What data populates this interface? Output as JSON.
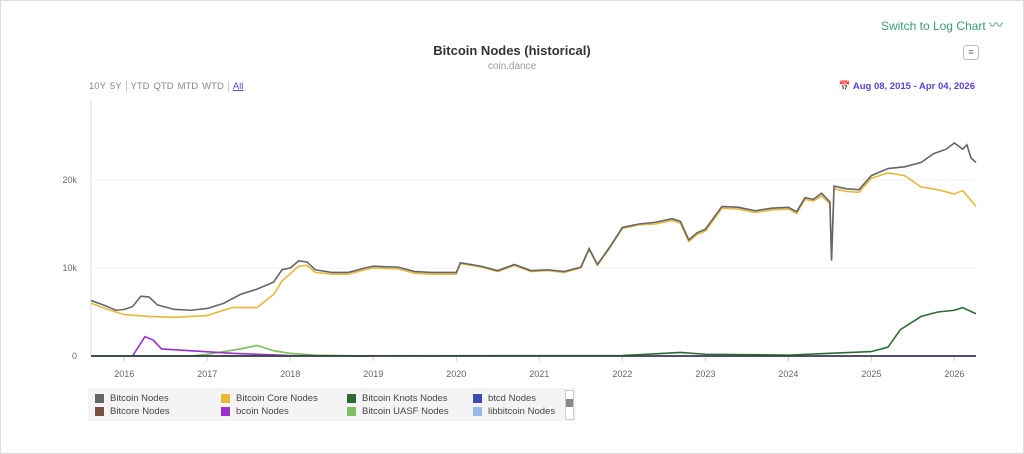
{
  "header": {
    "log_toggle": "Switch to Log Chart",
    "log_icon": "trend-line-icon",
    "menu_icon": "hamburger-menu-icon"
  },
  "range_buttons": [
    "10Y",
    "5Y",
    "YTD",
    "QTD",
    "MTD",
    "WTD",
    "All"
  ],
  "selected_range": "All",
  "date_range": "Aug 08, 2015 - Apr 04, 2026",
  "chart_data": {
    "type": "line",
    "title": "Bitcoin Nodes (historical)",
    "subtitle": "coin.dance",
    "x_ticks": [
      "2016",
      "2017",
      "2018",
      "2019",
      "2020",
      "2021",
      "2022",
      "2023",
      "2024",
      "2025",
      "2026"
    ],
    "y_ticks": [
      "0",
      "10k",
      "20k"
    ],
    "xlim": [
      2015.6,
      2026.26
    ],
    "ylim": [
      0,
      25000
    ],
    "grid": true,
    "legend_placement": "bottom",
    "series": [
      {
        "name": "Bitcoin Nodes",
        "color": "#666666",
        "points": [
          [
            2015.6,
            6300
          ],
          [
            2015.75,
            5800
          ],
          [
            2015.9,
            5200
          ],
          [
            2016.0,
            5300
          ],
          [
            2016.1,
            5600
          ],
          [
            2016.2,
            6800
          ],
          [
            2016.3,
            6700
          ],
          [
            2016.4,
            5800
          ],
          [
            2016.6,
            5300
          ],
          [
            2016.8,
            5200
          ],
          [
            2017.0,
            5400
          ],
          [
            2017.2,
            6000
          ],
          [
            2017.4,
            7000
          ],
          [
            2017.6,
            7600
          ],
          [
            2017.8,
            8400
          ],
          [
            2017.9,
            9800
          ],
          [
            2018.0,
            10000
          ],
          [
            2018.1,
            10800
          ],
          [
            2018.2,
            10700
          ],
          [
            2018.3,
            9800
          ],
          [
            2018.5,
            9500
          ],
          [
            2018.7,
            9500
          ],
          [
            2018.9,
            10000
          ],
          [
            2019.0,
            10200
          ],
          [
            2019.3,
            10100
          ],
          [
            2019.5,
            9600
          ],
          [
            2019.7,
            9500
          ],
          [
            2020.0,
            9500
          ],
          [
            2020.05,
            10600
          ],
          [
            2020.3,
            10200
          ],
          [
            2020.5,
            9700
          ],
          [
            2020.7,
            10400
          ],
          [
            2020.9,
            9700
          ],
          [
            2021.1,
            9800
          ],
          [
            2021.3,
            9600
          ],
          [
            2021.5,
            10100
          ],
          [
            2021.6,
            12200
          ],
          [
            2021.7,
            10400
          ],
          [
            2021.85,
            12400
          ],
          [
            2022.0,
            14600
          ],
          [
            2022.2,
            15000
          ],
          [
            2022.4,
            15200
          ],
          [
            2022.6,
            15600
          ],
          [
            2022.7,
            15300
          ],
          [
            2022.8,
            13200
          ],
          [
            2022.9,
            14000
          ],
          [
            2023.0,
            14400
          ],
          [
            2023.2,
            17000
          ],
          [
            2023.4,
            16900
          ],
          [
            2023.6,
            16500
          ],
          [
            2023.8,
            16800
          ],
          [
            2024.0,
            16900
          ],
          [
            2024.1,
            16400
          ],
          [
            2024.2,
            18000
          ],
          [
            2024.3,
            17800
          ],
          [
            2024.4,
            18500
          ],
          [
            2024.5,
            17500
          ],
          [
            2024.52,
            10900
          ],
          [
            2024.55,
            19300
          ],
          [
            2024.7,
            19000
          ],
          [
            2024.85,
            18900
          ],
          [
            2025.0,
            20500
          ],
          [
            2025.2,
            21300
          ],
          [
            2025.4,
            21500
          ],
          [
            2025.6,
            22000
          ],
          [
            2025.75,
            23000
          ],
          [
            2025.9,
            23500
          ],
          [
            2026.0,
            24200
          ],
          [
            2026.1,
            23500
          ],
          [
            2026.15,
            24000
          ],
          [
            2026.2,
            22500
          ],
          [
            2026.26,
            22000
          ]
        ]
      },
      {
        "name": "Bitcoin Core Nodes",
        "color": "#e8b83a",
        "points": [
          [
            2015.6,
            6000
          ],
          [
            2015.8,
            5300
          ],
          [
            2016.0,
            4700
          ],
          [
            2016.3,
            4500
          ],
          [
            2016.6,
            4400
          ],
          [
            2017.0,
            4600
          ],
          [
            2017.3,
            5500
          ],
          [
            2017.6,
            5500
          ],
          [
            2017.8,
            7000
          ],
          [
            2017.9,
            8500
          ],
          [
            2018.1,
            10200
          ],
          [
            2018.2,
            10300
          ],
          [
            2018.3,
            9500
          ],
          [
            2018.5,
            9300
          ],
          [
            2018.7,
            9300
          ],
          [
            2018.9,
            9800
          ],
          [
            2019.0,
            10000
          ],
          [
            2019.3,
            9900
          ],
          [
            2019.5,
            9400
          ],
          [
            2019.7,
            9300
          ],
          [
            2020.0,
            9300
          ],
          [
            2020.05,
            10500
          ],
          [
            2020.3,
            10100
          ],
          [
            2020.5,
            9600
          ],
          [
            2020.7,
            10300
          ],
          [
            2020.9,
            9600
          ],
          [
            2021.1,
            9700
          ],
          [
            2021.3,
            9500
          ],
          [
            2021.5,
            10000
          ],
          [
            2021.6,
            12100
          ],
          [
            2021.7,
            10300
          ],
          [
            2021.85,
            12300
          ],
          [
            2022.0,
            14500
          ],
          [
            2022.2,
            14900
          ],
          [
            2022.4,
            15000
          ],
          [
            2022.6,
            15400
          ],
          [
            2022.7,
            15100
          ],
          [
            2022.8,
            13000
          ],
          [
            2022.9,
            13800
          ],
          [
            2023.0,
            14200
          ],
          [
            2023.2,
            16800
          ],
          [
            2023.4,
            16700
          ],
          [
            2023.6,
            16300
          ],
          [
            2023.8,
            16600
          ],
          [
            2024.0,
            16700
          ],
          [
            2024.1,
            16200
          ],
          [
            2024.2,
            17800
          ],
          [
            2024.3,
            17600
          ],
          [
            2024.4,
            18200
          ],
          [
            2024.5,
            17300
          ],
          [
            2024.52,
            10800
          ],
          [
            2024.55,
            19000
          ],
          [
            2024.7,
            18700
          ],
          [
            2024.85,
            18600
          ],
          [
            2025.0,
            20200
          ],
          [
            2025.2,
            20800
          ],
          [
            2025.4,
            20500
          ],
          [
            2025.6,
            19200
          ],
          [
            2025.8,
            18900
          ],
          [
            2026.0,
            18400
          ],
          [
            2026.1,
            18800
          ],
          [
            2026.26,
            17000
          ]
        ]
      },
      {
        "name": "Bitcoin Knots Nodes",
        "color": "#2e6b34",
        "points": [
          [
            2015.6,
            0
          ],
          [
            2022.0,
            50
          ],
          [
            2022.7,
            400
          ],
          [
            2023.0,
            200
          ],
          [
            2024.0,
            100
          ],
          [
            2024.5,
            300
          ],
          [
            2025.0,
            500
          ],
          [
            2025.2,
            1000
          ],
          [
            2025.35,
            3000
          ],
          [
            2025.6,
            4500
          ],
          [
            2025.8,
            5000
          ],
          [
            2026.0,
            5200
          ],
          [
            2026.1,
            5500
          ],
          [
            2026.26,
            4800
          ]
        ]
      },
      {
        "name": "btcd Nodes",
        "color": "#3a4cb0",
        "points": [
          [
            2015.6,
            0
          ],
          [
            2026.26,
            0
          ]
        ]
      },
      {
        "name": "Bitcore Nodes",
        "color": "#7a5040",
        "points": [
          [
            2015.6,
            0
          ],
          [
            2026.26,
            0
          ]
        ]
      },
      {
        "name": "bcoin Nodes",
        "color": "#9a30d0",
        "points": [
          [
            2016.1,
            0
          ],
          [
            2016.25,
            2200
          ],
          [
            2016.35,
            1800
          ],
          [
            2016.45,
            800
          ],
          [
            2017.3,
            300
          ],
          [
            2018.0,
            50
          ],
          [
            2019.0,
            0
          ]
        ]
      },
      {
        "name": "Bitcoin UASF Nodes",
        "color": "#7bbf5e",
        "points": [
          [
            2016.8,
            0
          ],
          [
            2017.0,
            200
          ],
          [
            2017.4,
            800
          ],
          [
            2017.6,
            1200
          ],
          [
            2017.8,
            600
          ],
          [
            2018.0,
            300
          ],
          [
            2018.3,
            100
          ],
          [
            2019.0,
            0
          ]
        ]
      },
      {
        "name": "libbitcoin Nodes",
        "color": "#99b8e8",
        "points": [
          [
            2015.6,
            0
          ],
          [
            2026.26,
            0
          ]
        ]
      }
    ]
  }
}
